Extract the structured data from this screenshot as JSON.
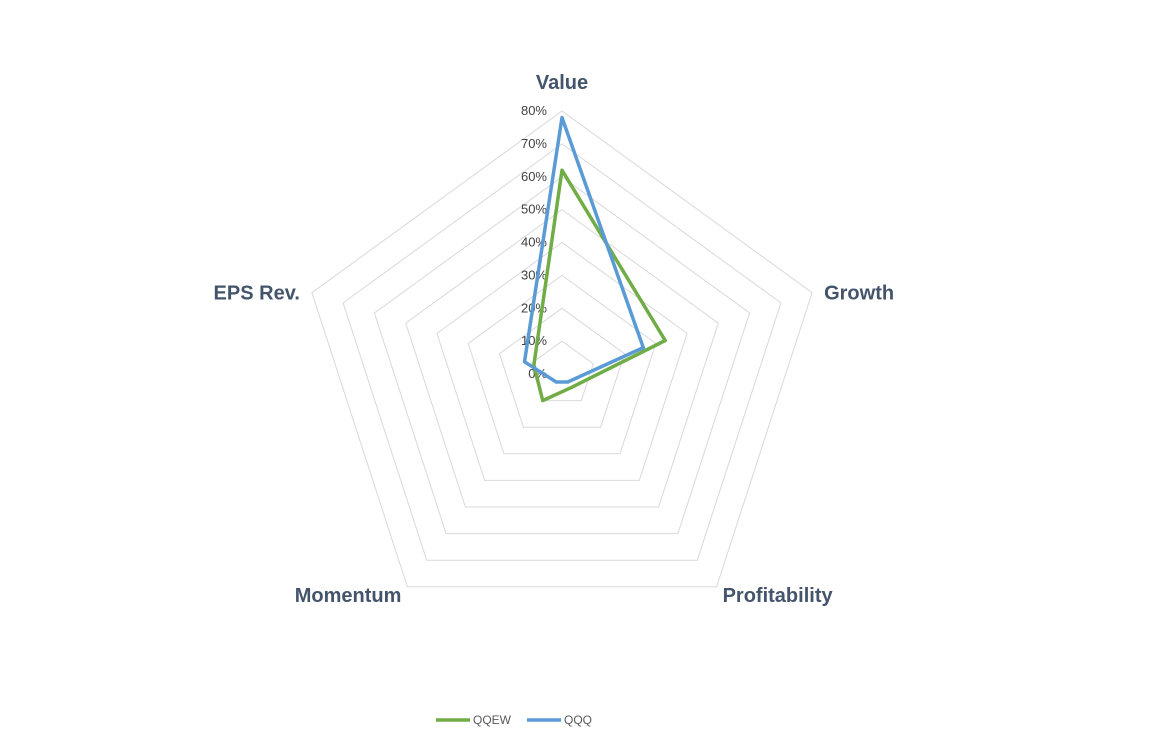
{
  "chart_data": {
    "type": "radar",
    "axes": [
      "Value",
      "Growth",
      "Profitability",
      "Momentum",
      "EPS Rev."
    ],
    "rlim": [
      0,
      80
    ],
    "ticks": [
      0,
      10,
      20,
      30,
      40,
      50,
      60,
      70,
      80
    ],
    "tick_labels": [
      "0%",
      "10%",
      "20%",
      "30%",
      "40%",
      "50%",
      "60%",
      "70%",
      "80%"
    ],
    "unit": "%",
    "grid": true,
    "legend_position": "bottom",
    "series": [
      {
        "name": "QQEW",
        "color": "#70ad47",
        "values": [
          62,
          33,
          5,
          10,
          9
        ]
      },
      {
        "name": "QQQ",
        "color": "#5b9bd5",
        "values": [
          78,
          26,
          3,
          3,
          12
        ]
      }
    ]
  }
}
